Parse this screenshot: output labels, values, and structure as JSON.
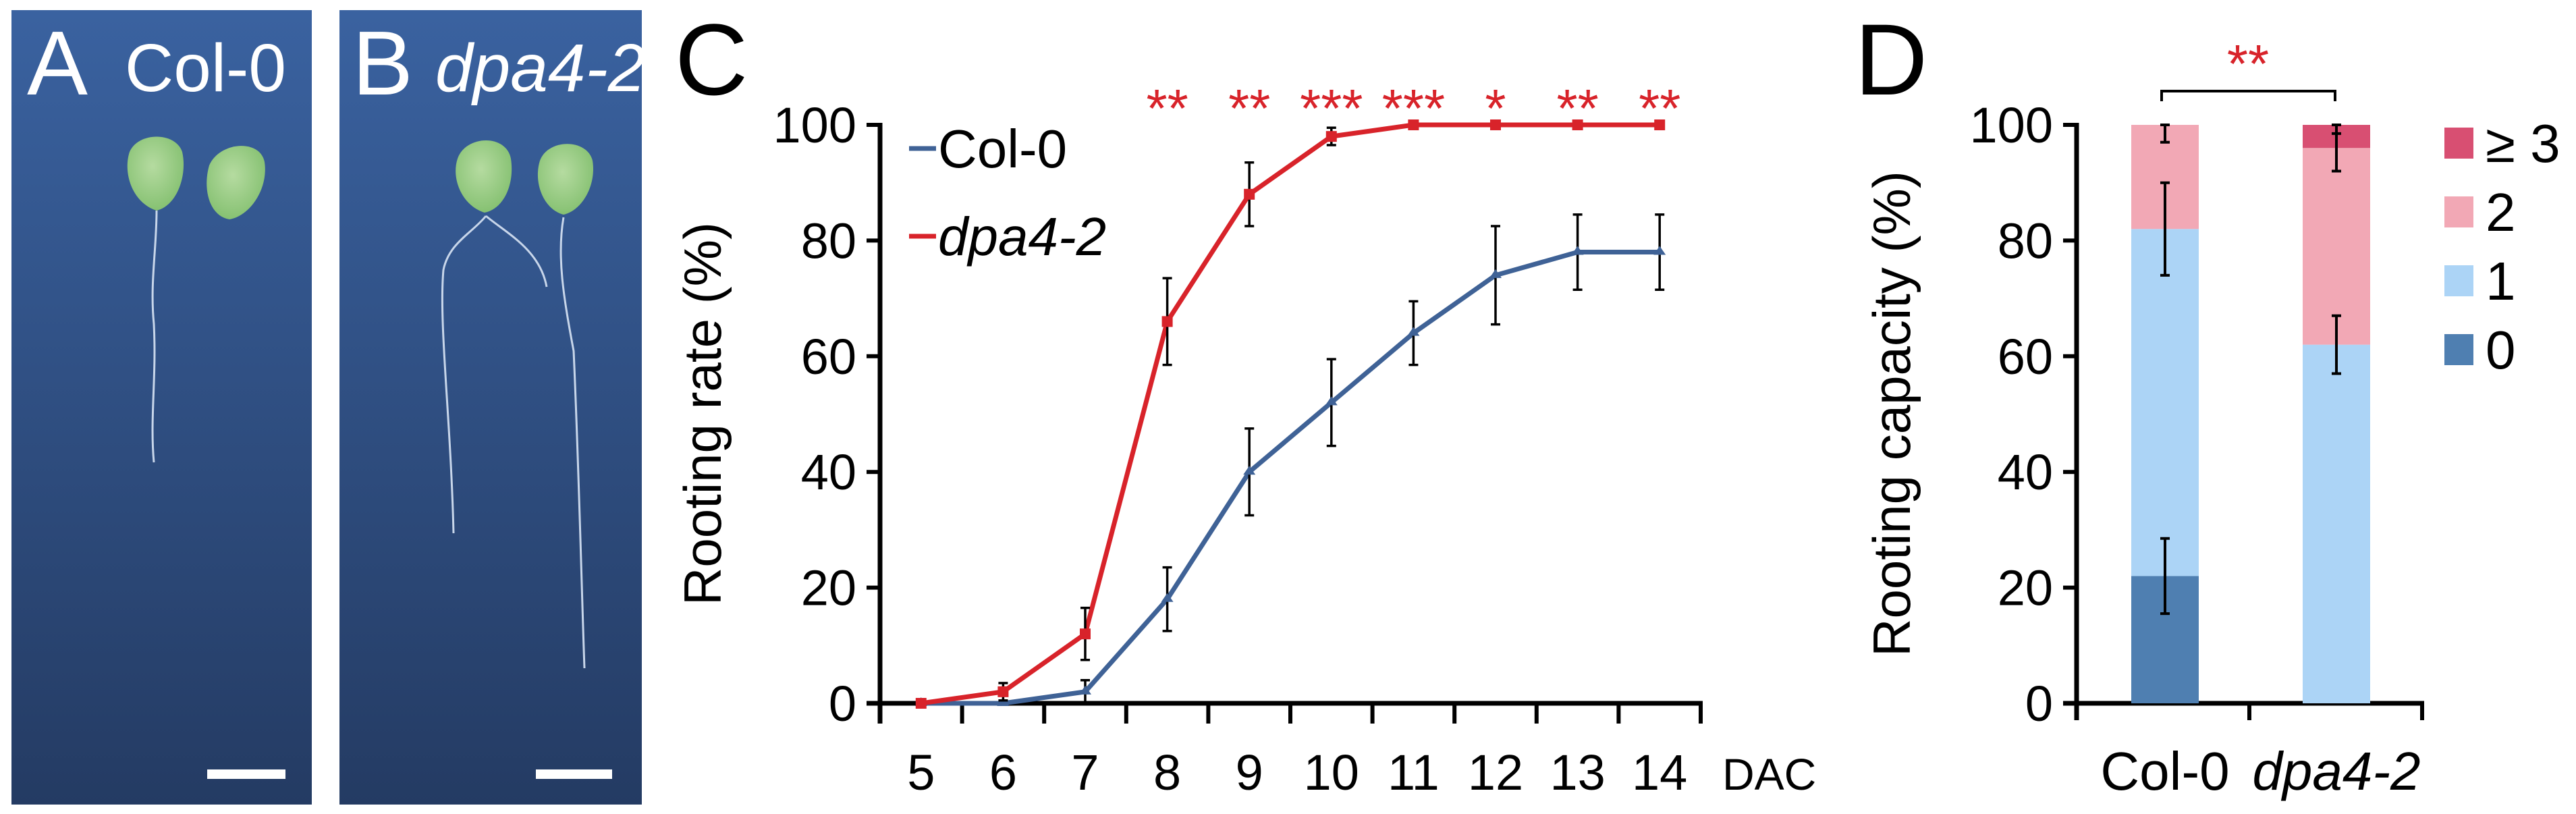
{
  "panel_a": {
    "letter": "A",
    "genotype": "Col-0"
  },
  "panel_b": {
    "letter": "B",
    "genotype": "dpa4-2"
  },
  "colors": {
    "photo_bg_top": "#3a62a0",
    "photo_bg_bottom": "#233a63",
    "leaf": "#9fd08a",
    "root": "#c8d6ea",
    "scale_bar": "#ffffff"
  },
  "chart_data": [
    {
      "panel_letter": "C",
      "type": "line",
      "xlabel": "DAC",
      "ylabel": "Rooting rate (%)",
      "ylim": [
        0,
        100
      ],
      "yticks": [
        "0",
        "20",
        "40",
        "60",
        "80",
        "100"
      ],
      "categories": [
        "5",
        "6",
        "7",
        "8",
        "9",
        "10",
        "11",
        "12",
        "13",
        "14"
      ],
      "legend_placement": "top-left",
      "grid": false,
      "series": [
        {
          "name": "Col-0",
          "color": "#3f6296",
          "italic": false,
          "values": [
            0,
            0,
            2,
            18,
            40,
            52,
            64,
            74,
            78,
            78
          ],
          "errors": [
            0,
            0,
            2,
            5.5,
            7.5,
            7.5,
            5.5,
            8.5,
            6.5,
            6.5
          ]
        },
        {
          "name": "dpa4-2",
          "color": "#d8232a",
          "italic": true,
          "values": [
            0,
            2,
            12,
            66,
            88,
            98,
            100,
            100,
            100,
            100
          ],
          "errors": [
            0,
            1.5,
            4.5,
            7.5,
            5.5,
            1.5,
            0,
            0,
            0,
            0
          ]
        }
      ],
      "significance": [
        "",
        "",
        "",
        "**",
        "**",
        "***",
        "***",
        "*",
        "**",
        "**"
      ],
      "significance_color": "#d8232a"
    },
    {
      "panel_letter": "D",
      "type": "bar",
      "stacked": true,
      "ylabel": "Rooting capacity (%)",
      "ylim": [
        0,
        100
      ],
      "yticks": [
        "0",
        "20",
        "40",
        "60",
        "80",
        "100"
      ],
      "categories": [
        "Col-0",
        "dpa4-2"
      ],
      "legend_placement": "right",
      "series": [
        {
          "name": "0",
          "color": "#4f7fb1",
          "values": [
            22,
            0
          ],
          "errors": [
            6.5,
            0
          ]
        },
        {
          "name": "1",
          "color": "#acd4f6",
          "values": [
            60,
            62
          ],
          "errors": [
            8,
            5
          ]
        },
        {
          "name": "2",
          "color": "#f2a8b5",
          "values": [
            18,
            34
          ],
          "errors": [
            3,
            4
          ]
        },
        {
          "name": "≥ 3",
          "color": "#d84f72",
          "values": [
            0,
            4
          ],
          "errors": [
            0,
            1.5
          ]
        }
      ],
      "significance": "**",
      "significance_color": "#d8232a"
    }
  ]
}
